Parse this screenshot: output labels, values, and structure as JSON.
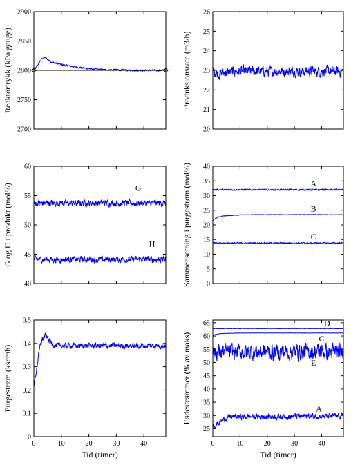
{
  "chart_data": [
    {
      "type": "line",
      "ylabel": "Reaktortrykk (kPa gauge)",
      "xlabel": "",
      "xlim": [
        0,
        48
      ],
      "ylim": [
        2700,
        2900
      ],
      "xticks": [],
      "yticks": [
        2700,
        2750,
        2800,
        2850,
        2900
      ],
      "series": [
        {
          "kind": "line",
          "color": "#0000ee",
          "x": [
            0,
            1,
            2,
            3,
            4,
            5,
            6,
            8,
            10,
            12,
            15,
            18,
            20,
            25,
            30,
            35,
            40,
            45,
            48
          ],
          "y": [
            2800,
            2806,
            2814,
            2820,
            2822,
            2819,
            2815,
            2812,
            2810,
            2808,
            2806,
            2804,
            2803,
            2801,
            2801,
            2800,
            2800,
            2800,
            2800
          ],
          "noise": 1.2
        },
        {
          "kind": "ref",
          "color": "#000000",
          "x": [
            0,
            48
          ],
          "y": [
            2800,
            2800
          ],
          "markers": "diamond"
        }
      ],
      "annotations": []
    },
    {
      "type": "line",
      "ylabel": "Produksjonsrate (m3/h)",
      "xlabel": "",
      "xlim": [
        0,
        48
      ],
      "ylim": [
        20,
        26
      ],
      "xticks": [],
      "yticks": [
        20,
        21,
        22,
        23,
        24,
        25,
        26
      ],
      "series": [
        {
          "kind": "line",
          "color": "#0000ee",
          "x": [
            0,
            2,
            5,
            10,
            20,
            30,
            40,
            48
          ],
          "y": [
            23,
            22.8,
            22.9,
            22.95,
            22.95,
            22.95,
            22.95,
            22.95
          ],
          "noise": 0.22
        }
      ],
      "annotations": []
    },
    {
      "type": "line",
      "ylabel": "G og H i produkt (mol%)",
      "xlabel": "",
      "xlim": [
        0,
        48
      ],
      "ylim": [
        40,
        60
      ],
      "xticks": [],
      "yticks": [
        40,
        45,
        50,
        55,
        60
      ],
      "series": [
        {
          "kind": "line",
          "color": "#0000ee",
          "x": [
            0,
            48
          ],
          "y": [
            53.7,
            53.7
          ],
          "noise": 0.45
        },
        {
          "kind": "line",
          "color": "#0000ee",
          "x": [
            0,
            48
          ],
          "y": [
            44.1,
            44.1
          ],
          "noise": 0.45
        }
      ],
      "annotations": [
        {
          "text": "G",
          "x": 38,
          "y": 55.8
        },
        {
          "text": "H",
          "x": 43,
          "y": 46.3
        }
      ]
    },
    {
      "type": "line",
      "ylabel": "Sammensetning i purgestrøm (mol%)",
      "xlabel": "",
      "xlim": [
        0,
        48
      ],
      "ylim": [
        0,
        40
      ],
      "xticks": [],
      "yticks": [
        0,
        5,
        10,
        15,
        20,
        25,
        30,
        35,
        40
      ],
      "series": [
        {
          "kind": "line",
          "color": "#0000ee",
          "x": [
            0,
            48
          ],
          "y": [
            32,
            32
          ],
          "noise": 0.2
        },
        {
          "kind": "line",
          "color": "#0000ee",
          "x": [
            0,
            1,
            2,
            4,
            6,
            8,
            10,
            15,
            20,
            30,
            40,
            48
          ],
          "y": [
            21.5,
            22.2,
            22.7,
            23,
            23.2,
            23.3,
            23.4,
            23.5,
            23.5,
            23.5,
            23.5,
            23.5
          ],
          "noise": 0.08
        },
        {
          "kind": "line",
          "color": "#0000ee",
          "x": [
            0,
            48
          ],
          "y": [
            13.8,
            13.8
          ],
          "noise": 0.2
        }
      ],
      "annotations": [
        {
          "text": "A",
          "x": 37,
          "y": 33.2
        },
        {
          "text": "B",
          "x": 37,
          "y": 24.6
        },
        {
          "text": "C",
          "x": 37,
          "y": 15.1
        }
      ]
    },
    {
      "type": "line",
      "ylabel": "Purgestrøm (kscmh)",
      "xlabel": "Tid (timer)",
      "xlim": [
        0,
        48
      ],
      "ylim": [
        0,
        0.5
      ],
      "xticks": [
        0,
        10,
        20,
        30,
        40
      ],
      "yticks": [
        0,
        0.1,
        0.2,
        0.3,
        0.4,
        0.5
      ],
      "series": [
        {
          "kind": "line",
          "color": "#0000ee",
          "x": [
            0,
            0.5,
            1,
            1.5,
            2,
            2.5,
            3,
            3.5,
            4,
            4.5,
            5,
            6,
            7,
            8,
            10,
            15,
            20,
            25,
            30,
            35,
            40,
            45,
            48
          ],
          "y": [
            0.22,
            0.25,
            0.29,
            0.33,
            0.37,
            0.4,
            0.415,
            0.425,
            0.43,
            0.43,
            0.42,
            0.405,
            0.395,
            0.39,
            0.39,
            0.39,
            0.39,
            0.39,
            0.39,
            0.39,
            0.39,
            0.39,
            0.39
          ],
          "noise": 0.01
        }
      ],
      "annotations": []
    },
    {
      "type": "line",
      "ylabel": "Fødestrømmer (% av maks)",
      "xlabel": "Tid (timer)",
      "xlim": [
        0,
        48
      ],
      "ylim": [
        22,
        66
      ],
      "xticks": [
        0,
        10,
        20,
        30,
        40
      ],
      "yticks": [
        25,
        30,
        35,
        40,
        45,
        50,
        55,
        60,
        65
      ],
      "series": [
        {
          "kind": "line",
          "color": "#0000ee",
          "x": [
            0,
            48
          ],
          "y": [
            62.8,
            62.8
          ],
          "noise": 0.05
        },
        {
          "kind": "line",
          "color": "#0000ee",
          "x": [
            0,
            2,
            5,
            10,
            48
          ],
          "y": [
            60.3,
            60.8,
            61,
            61.1,
            61.1
          ],
          "noise": 0.04
        },
        {
          "kind": "line",
          "color": "#0000ee",
          "x": [
            0,
            48
          ],
          "y": [
            54,
            54
          ],
          "noise": 2.6
        },
        {
          "kind": "line",
          "color": "#0000ee",
          "x": [
            0,
            2,
            4,
            6,
            48
          ],
          "y": [
            26,
            27,
            28.5,
            29.5,
            29.8
          ],
          "noise": 0.9
        }
      ],
      "annotations": [
        {
          "text": "D",
          "x": 42,
          "y": 63.8
        },
        {
          "text": "C",
          "x": 40,
          "y": 57.9
        },
        {
          "text": "E",
          "x": 37,
          "y": 48.8
        },
        {
          "text": "A",
          "x": 39,
          "y": 31.5
        }
      ]
    }
  ]
}
